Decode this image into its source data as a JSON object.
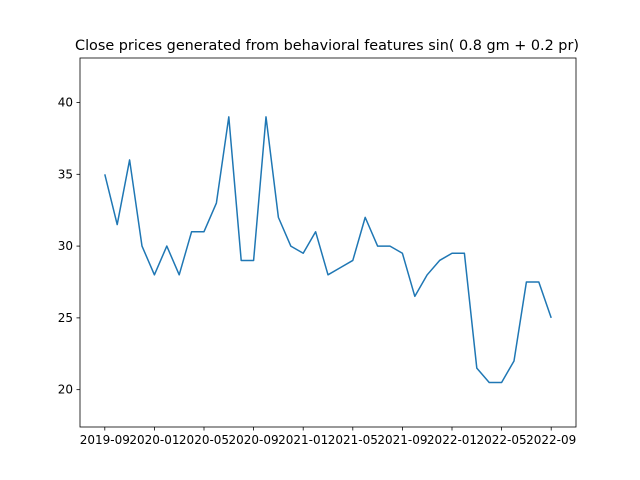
{
  "chart_data": {
    "type": "line",
    "title": "Close prices generated from behavioral features sin( 0.8 gm + 0.2 pr)",
    "x": [
      "2019-09",
      "2019-10",
      "2019-11",
      "2019-12",
      "2020-01",
      "2020-02",
      "2020-03",
      "2020-04",
      "2020-05",
      "2020-06",
      "2020-07",
      "2020-08",
      "2020-09",
      "2020-10",
      "2020-11",
      "2020-12",
      "2021-01",
      "2021-02",
      "2021-03",
      "2021-04",
      "2021-05",
      "2021-06",
      "2021-07",
      "2021-08",
      "2021-09",
      "2021-10",
      "2021-11",
      "2021-12",
      "2022-01",
      "2022-02",
      "2022-03",
      "2022-04",
      "2022-05",
      "2022-06",
      "2022-07",
      "2022-08",
      "2022-09"
    ],
    "series": [
      {
        "color": "#1f77b4",
        "values": [
          35,
          31.5,
          36,
          30,
          28,
          30,
          28,
          31,
          31,
          33,
          39,
          29,
          29,
          39,
          32,
          30,
          29.5,
          31,
          28,
          28.5,
          29,
          32,
          30,
          30,
          29.5,
          26.5,
          28,
          29,
          29.5,
          29.5,
          21.5,
          20.5,
          20.5,
          22,
          27.5,
          27.5,
          25
        ]
      }
    ],
    "xlim": [
      "2019-07",
      "2022-11"
    ],
    "xticks": [
      "2019-09",
      "2020-01",
      "2020-05",
      "2020-09",
      "2021-01",
      "2021-05",
      "2021-09",
      "2022-01",
      "2022-05",
      "2022-09"
    ],
    "ylim": [
      17.4,
      43.1
    ],
    "yticks": [
      20,
      25,
      30,
      35,
      40
    ]
  }
}
